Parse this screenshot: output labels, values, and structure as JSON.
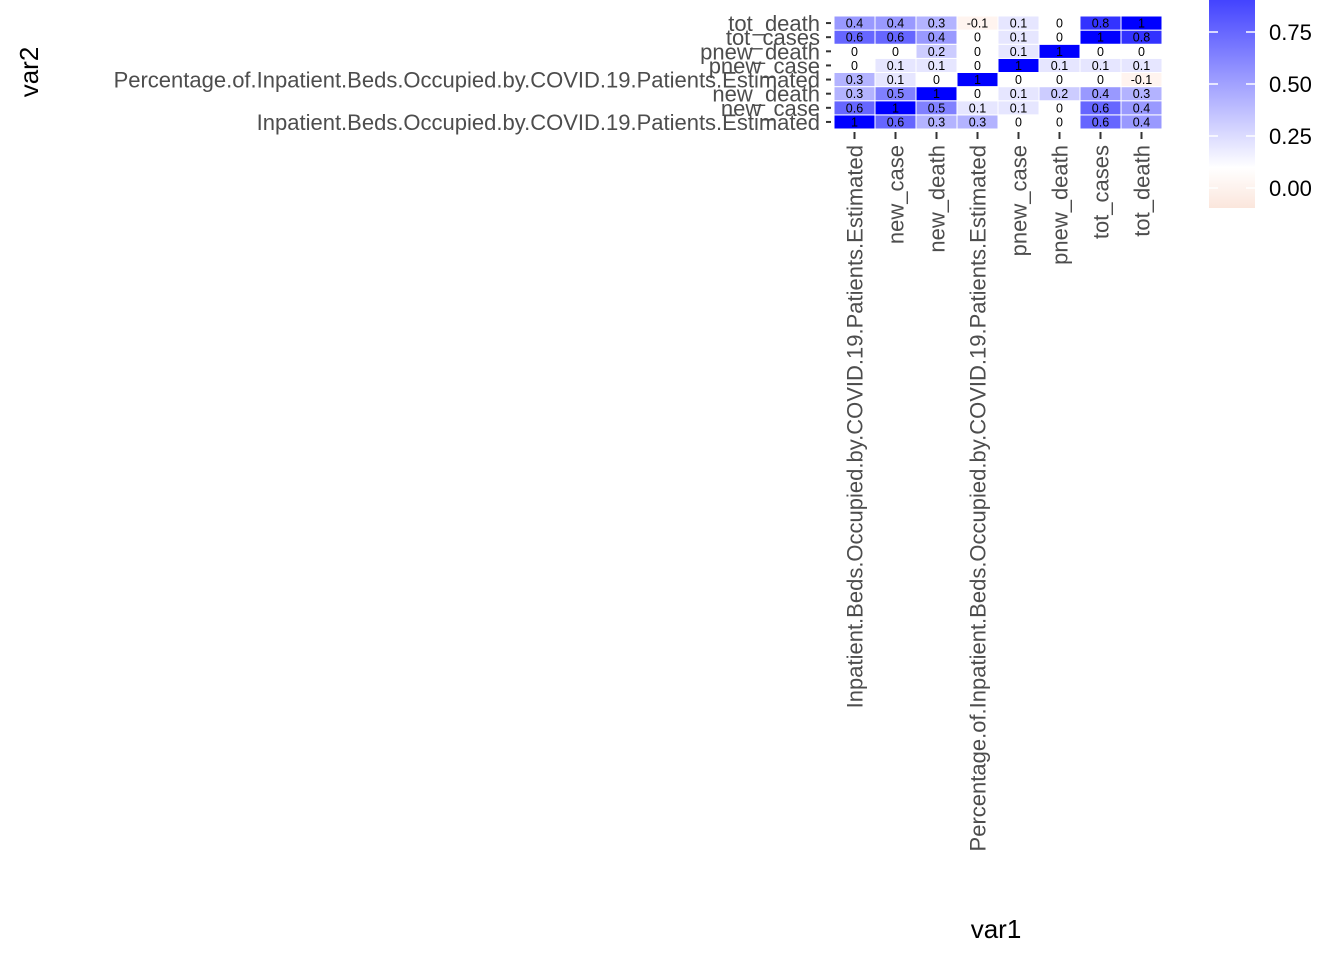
{
  "chart_data": {
    "type": "heatmap",
    "xlabel": "var1",
    "ylabel": "var2",
    "x_categories": [
      "Inpatient.Beds.Occupied.by.COVID.19.Patients.Estimated",
      "new_case",
      "new_death",
      "Percentage.of.Inpatient.Beds.Occupied.by.COVID.19.Patients.Estimated",
      "pnew_case",
      "pnew_death",
      "tot_cases",
      "tot_death"
    ],
    "y_categories": [
      "Inpatient.Beds.Occupied.by.COVID.19.Patients.Estimated",
      "new_case",
      "new_death",
      "Percentage.of.Inpatient.Beds.Occupied.by.COVID.19.Patients.Estimated",
      "pnew_case",
      "pnew_death",
      "tot_cases",
      "tot_death"
    ],
    "value_labels": [
      [
        "1",
        "0.6",
        "0.3",
        "0.3",
        "0",
        "0",
        "0.6",
        "0.4"
      ],
      [
        "0.6",
        "1",
        "0.5",
        "0.1",
        "0.1",
        "0",
        "0.6",
        "0.4"
      ],
      [
        "0.3",
        "0.5",
        "1",
        "0",
        "0.1",
        "0.2",
        "0.4",
        "0.3"
      ],
      [
        "0.3",
        "0.1",
        "0",
        "1",
        "0",
        "0",
        "0",
        "-0.1"
      ],
      [
        "0",
        "0.1",
        "0.1",
        "0",
        "1",
        "0.1",
        "0.1",
        "0.1"
      ],
      [
        "0",
        "0",
        "0.2",
        "0",
        "0.1",
        "1",
        "0",
        "0"
      ],
      [
        "0.6",
        "0.6",
        "0.4",
        "0",
        "0.1",
        "0",
        "1",
        "0.8"
      ],
      [
        "0.4",
        "0.4",
        "0.3",
        "-0.1",
        "0.1",
        "0",
        "0.8",
        "1"
      ]
    ],
    "legend": {
      "breaks": [
        "0.00",
        "0.25",
        "0.50",
        "0.75"
      ],
      "range": [
        -0.1,
        1
      ],
      "low_color": "#fbe6dc",
      "mid_color": "#ffffff",
      "high_color": "#0000ff",
      "placement": "top-right"
    }
  }
}
